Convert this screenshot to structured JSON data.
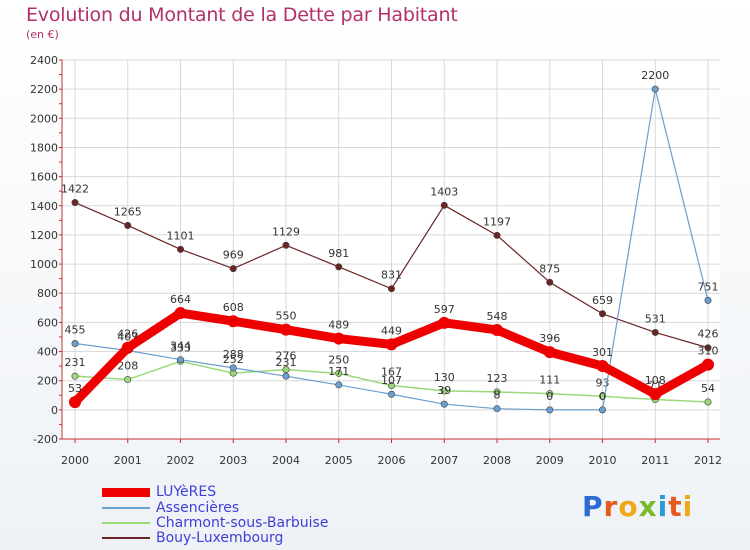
{
  "title": "Evolution du Montant de la Dette par Habitant",
  "subtitle": "(en €)",
  "logo": {
    "letters": [
      "P",
      "r",
      "o",
      "x",
      "i",
      "t",
      "i"
    ],
    "colors": [
      "#2b6cd6",
      "#e85a1c",
      "#f0a818",
      "#7ab82c",
      "#2b9bd6",
      "#e85a1c",
      "#f0a818"
    ]
  },
  "chart_data": {
    "type": "line",
    "x": [
      "2000",
      "2001",
      "2002",
      "2003",
      "2004",
      "2005",
      "2006",
      "2007",
      "2008",
      "2009",
      "2010",
      "2011",
      "2012"
    ],
    "yticks": [
      "-200",
      "0",
      "200",
      "400",
      "600",
      "800",
      "1000",
      "1200",
      "1400",
      "1600",
      "1800",
      "2000",
      "2200",
      "2400"
    ],
    "ylim": [
      -200,
      2400
    ],
    "grid": true,
    "legend_position": "bottom-left",
    "series": [
      {
        "name": "Bouy-Luxembourg",
        "color": "#6b2424",
        "width": 1.2,
        "values": [
          1422,
          1265,
          1101,
          969,
          1129,
          981,
          831,
          1403,
          1197,
          875,
          659,
          531,
          426
        ],
        "labels": [
          "1422",
          "1265",
          "1101",
          "969",
          "1129",
          "981",
          "831",
          "1403",
          "1197",
          "875",
          "659",
          "531",
          "426"
        ]
      },
      {
        "name": "Charmont-sous-Barbuise",
        "color": "#99d97a",
        "width": 1.5,
        "values": [
          231,
          208,
          333,
          252,
          276,
          250,
          167,
          130,
          123,
          111,
          93,
          71,
          54
        ],
        "labels": [
          "231",
          "208",
          "333",
          "252",
          "276",
          "250",
          "167",
          "130",
          "123",
          "111",
          "93",
          "71",
          "54"
        ]
      },
      {
        "name": "Assencières",
        "color": "#6a9fd0",
        "width": 1.2,
        "values": [
          455,
          407,
          344,
          288,
          231,
          171,
          107,
          39,
          8,
          0,
          0,
          2200,
          751
        ],
        "labels": [
          "455",
          "407",
          "344",
          "288",
          "231",
          "171",
          "107",
          "39",
          "8",
          "0",
          "0",
          "2200",
          "751"
        ]
      },
      {
        "name": "LUYèRES",
        "color": "#ee0000",
        "width": 9,
        "values": [
          53,
          426,
          664,
          608,
          550,
          489,
          449,
          597,
          548,
          396,
          301,
          108,
          310
        ],
        "labels": [
          "53",
          "426",
          "664",
          "608",
          "550",
          "489",
          "449",
          "597",
          "548",
          "396",
          "301",
          "108",
          "310"
        ]
      }
    ]
  },
  "legend": [
    {
      "label": "LUYèRES",
      "color": "#ee0000",
      "thickness": 9
    },
    {
      "label": "Assencières",
      "color": "#6a9fd0",
      "thickness": 2
    },
    {
      "label": "Charmont-sous-Barbuise",
      "color": "#99d97a",
      "thickness": 2
    },
    {
      "label": "Bouy-Luxembourg",
      "color": "#6b2424",
      "thickness": 2
    }
  ]
}
